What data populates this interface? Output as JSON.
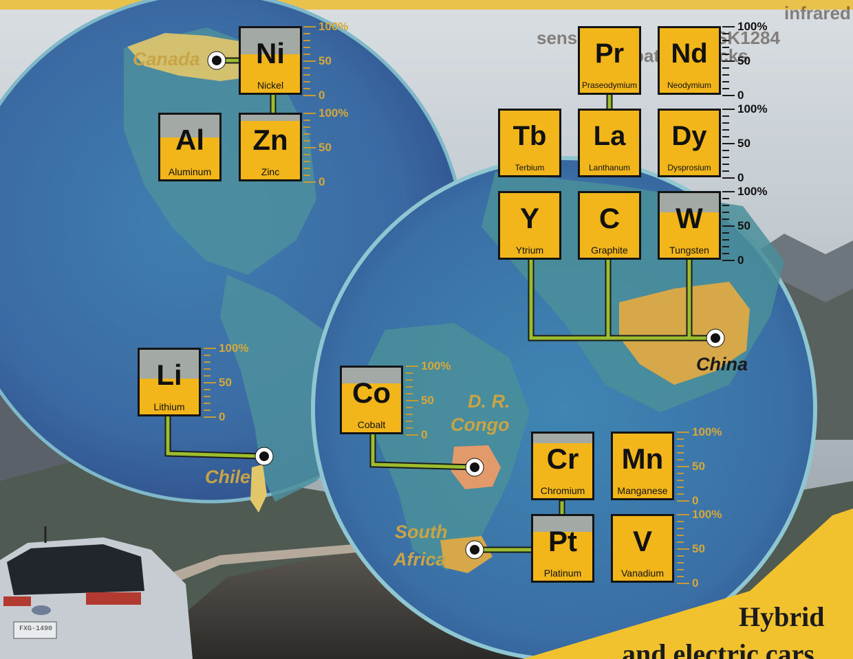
{
  "elements": [
    {
      "id": "ni",
      "symbol": "Ni",
      "name": "Nickel",
      "level": 0.6
    },
    {
      "id": "al",
      "symbol": "Al",
      "name": "Aluminum",
      "level": 0.65
    },
    {
      "id": "zn",
      "symbol": "Zn",
      "name": "Zinc",
      "level": 0.9
    },
    {
      "id": "li",
      "symbol": "Li",
      "name": "Lithium",
      "level": 0.55
    },
    {
      "id": "co",
      "symbol": "Co",
      "name": "Cobalt",
      "level": 0.75
    },
    {
      "id": "pr",
      "symbol": "Pr",
      "name": "Praseodymium",
      "level": 1.0
    },
    {
      "id": "nd",
      "symbol": "Nd",
      "name": "Neodymium",
      "level": 1.0
    },
    {
      "id": "tb",
      "symbol": "Tb",
      "name": "Terbium",
      "level": 1.0
    },
    {
      "id": "la",
      "symbol": "La",
      "name": "Lanthanum",
      "level": 1.0
    },
    {
      "id": "dy",
      "symbol": "Dy",
      "name": "Dysprosium",
      "level": 1.0
    },
    {
      "id": "y",
      "symbol": "Y",
      "name": "Ytrium",
      "level": 1.0
    },
    {
      "id": "c",
      "symbol": "C",
      "name": "Graphite",
      "level": 1.0
    },
    {
      "id": "w",
      "symbol": "W",
      "name": "Tungsten",
      "level": 0.7
    },
    {
      "id": "cr",
      "symbol": "Cr",
      "name": "Chromium",
      "level": 0.85
    },
    {
      "id": "mn",
      "symbol": "Mn",
      "name": "Manganese",
      "level": 1.0
    },
    {
      "id": "pt",
      "symbol": "Pt",
      "name": "Platinum",
      "level": 0.75
    },
    {
      "id": "v",
      "symbol": "V",
      "name": "Vanadium",
      "level": 1.0
    }
  ],
  "scale_labels": {
    "top": "100%",
    "mid": "50",
    "bottom": "0"
  },
  "countries": {
    "canada": "Canada",
    "chile": "Chile",
    "china": "China",
    "drc_line1": "D. R.",
    "drc_line2": "Congo",
    "sa_line1": "South",
    "sa_line2": "Africa"
  },
  "banner": {
    "line1": "Hybrid",
    "line2": "and electric cars"
  },
  "background_text": {
    "line1": "infrared",
    "line2": "sensors",
    "line3": "battery packs",
    "code": "SK1284"
  },
  "car": {
    "plate": "FXG-1490"
  },
  "colors": {
    "fill": "#f2b61b",
    "unfilled": "#a3a9a5",
    "connector": "#9bbd2e",
    "banner": "#f2c12e",
    "land_highlight": "#e2c76a"
  }
}
